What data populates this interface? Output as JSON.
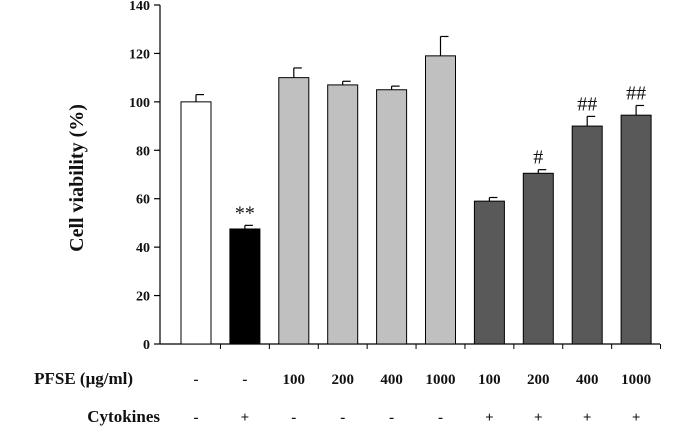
{
  "chart_data": {
    "type": "bar",
    "ylabel": "Cell viability (%)",
    "ylim": [
      0,
      140
    ],
    "yticks": [
      0,
      20,
      40,
      60,
      80,
      100,
      120,
      140
    ],
    "grid": false,
    "bars": [
      {
        "pfse": "-",
        "cytokines": "-",
        "value": 100,
        "error": 3,
        "color": "#ffffff",
        "annotation": ""
      },
      {
        "pfse": "-",
        "cytokines": "+",
        "value": 47.5,
        "error": 1.5,
        "color": "#000000",
        "annotation": "**"
      },
      {
        "pfse": "100",
        "cytokines": "-",
        "value": 110,
        "error": 4,
        "color": "#c0c0c0",
        "annotation": ""
      },
      {
        "pfse": "200",
        "cytokines": "-",
        "value": 107,
        "error": 1.5,
        "color": "#c0c0c0",
        "annotation": ""
      },
      {
        "pfse": "400",
        "cytokines": "-",
        "value": 105,
        "error": 1.5,
        "color": "#c0c0c0",
        "annotation": ""
      },
      {
        "pfse": "1000",
        "cytokines": "-",
        "value": 119,
        "error": 8,
        "color": "#c0c0c0",
        "annotation": ""
      },
      {
        "pfse": "100",
        "cytokines": "+",
        "value": 59,
        "error": 1.5,
        "color": "#595959",
        "annotation": ""
      },
      {
        "pfse": "200",
        "cytokines": "+",
        "value": 70.5,
        "error": 1.5,
        "color": "#595959",
        "annotation": "#"
      },
      {
        "pfse": "400",
        "cytokines": "+",
        "value": 90,
        "error": 4,
        "color": "#595959",
        "annotation": "##"
      },
      {
        "pfse": "1000",
        "cytokines": "+",
        "value": 94.5,
        "error": 4,
        "color": "#595959",
        "annotation": "##"
      }
    ],
    "row_labels": {
      "pfse": "PFSE (μg/ml)",
      "cytokines": "Cytokines"
    }
  }
}
